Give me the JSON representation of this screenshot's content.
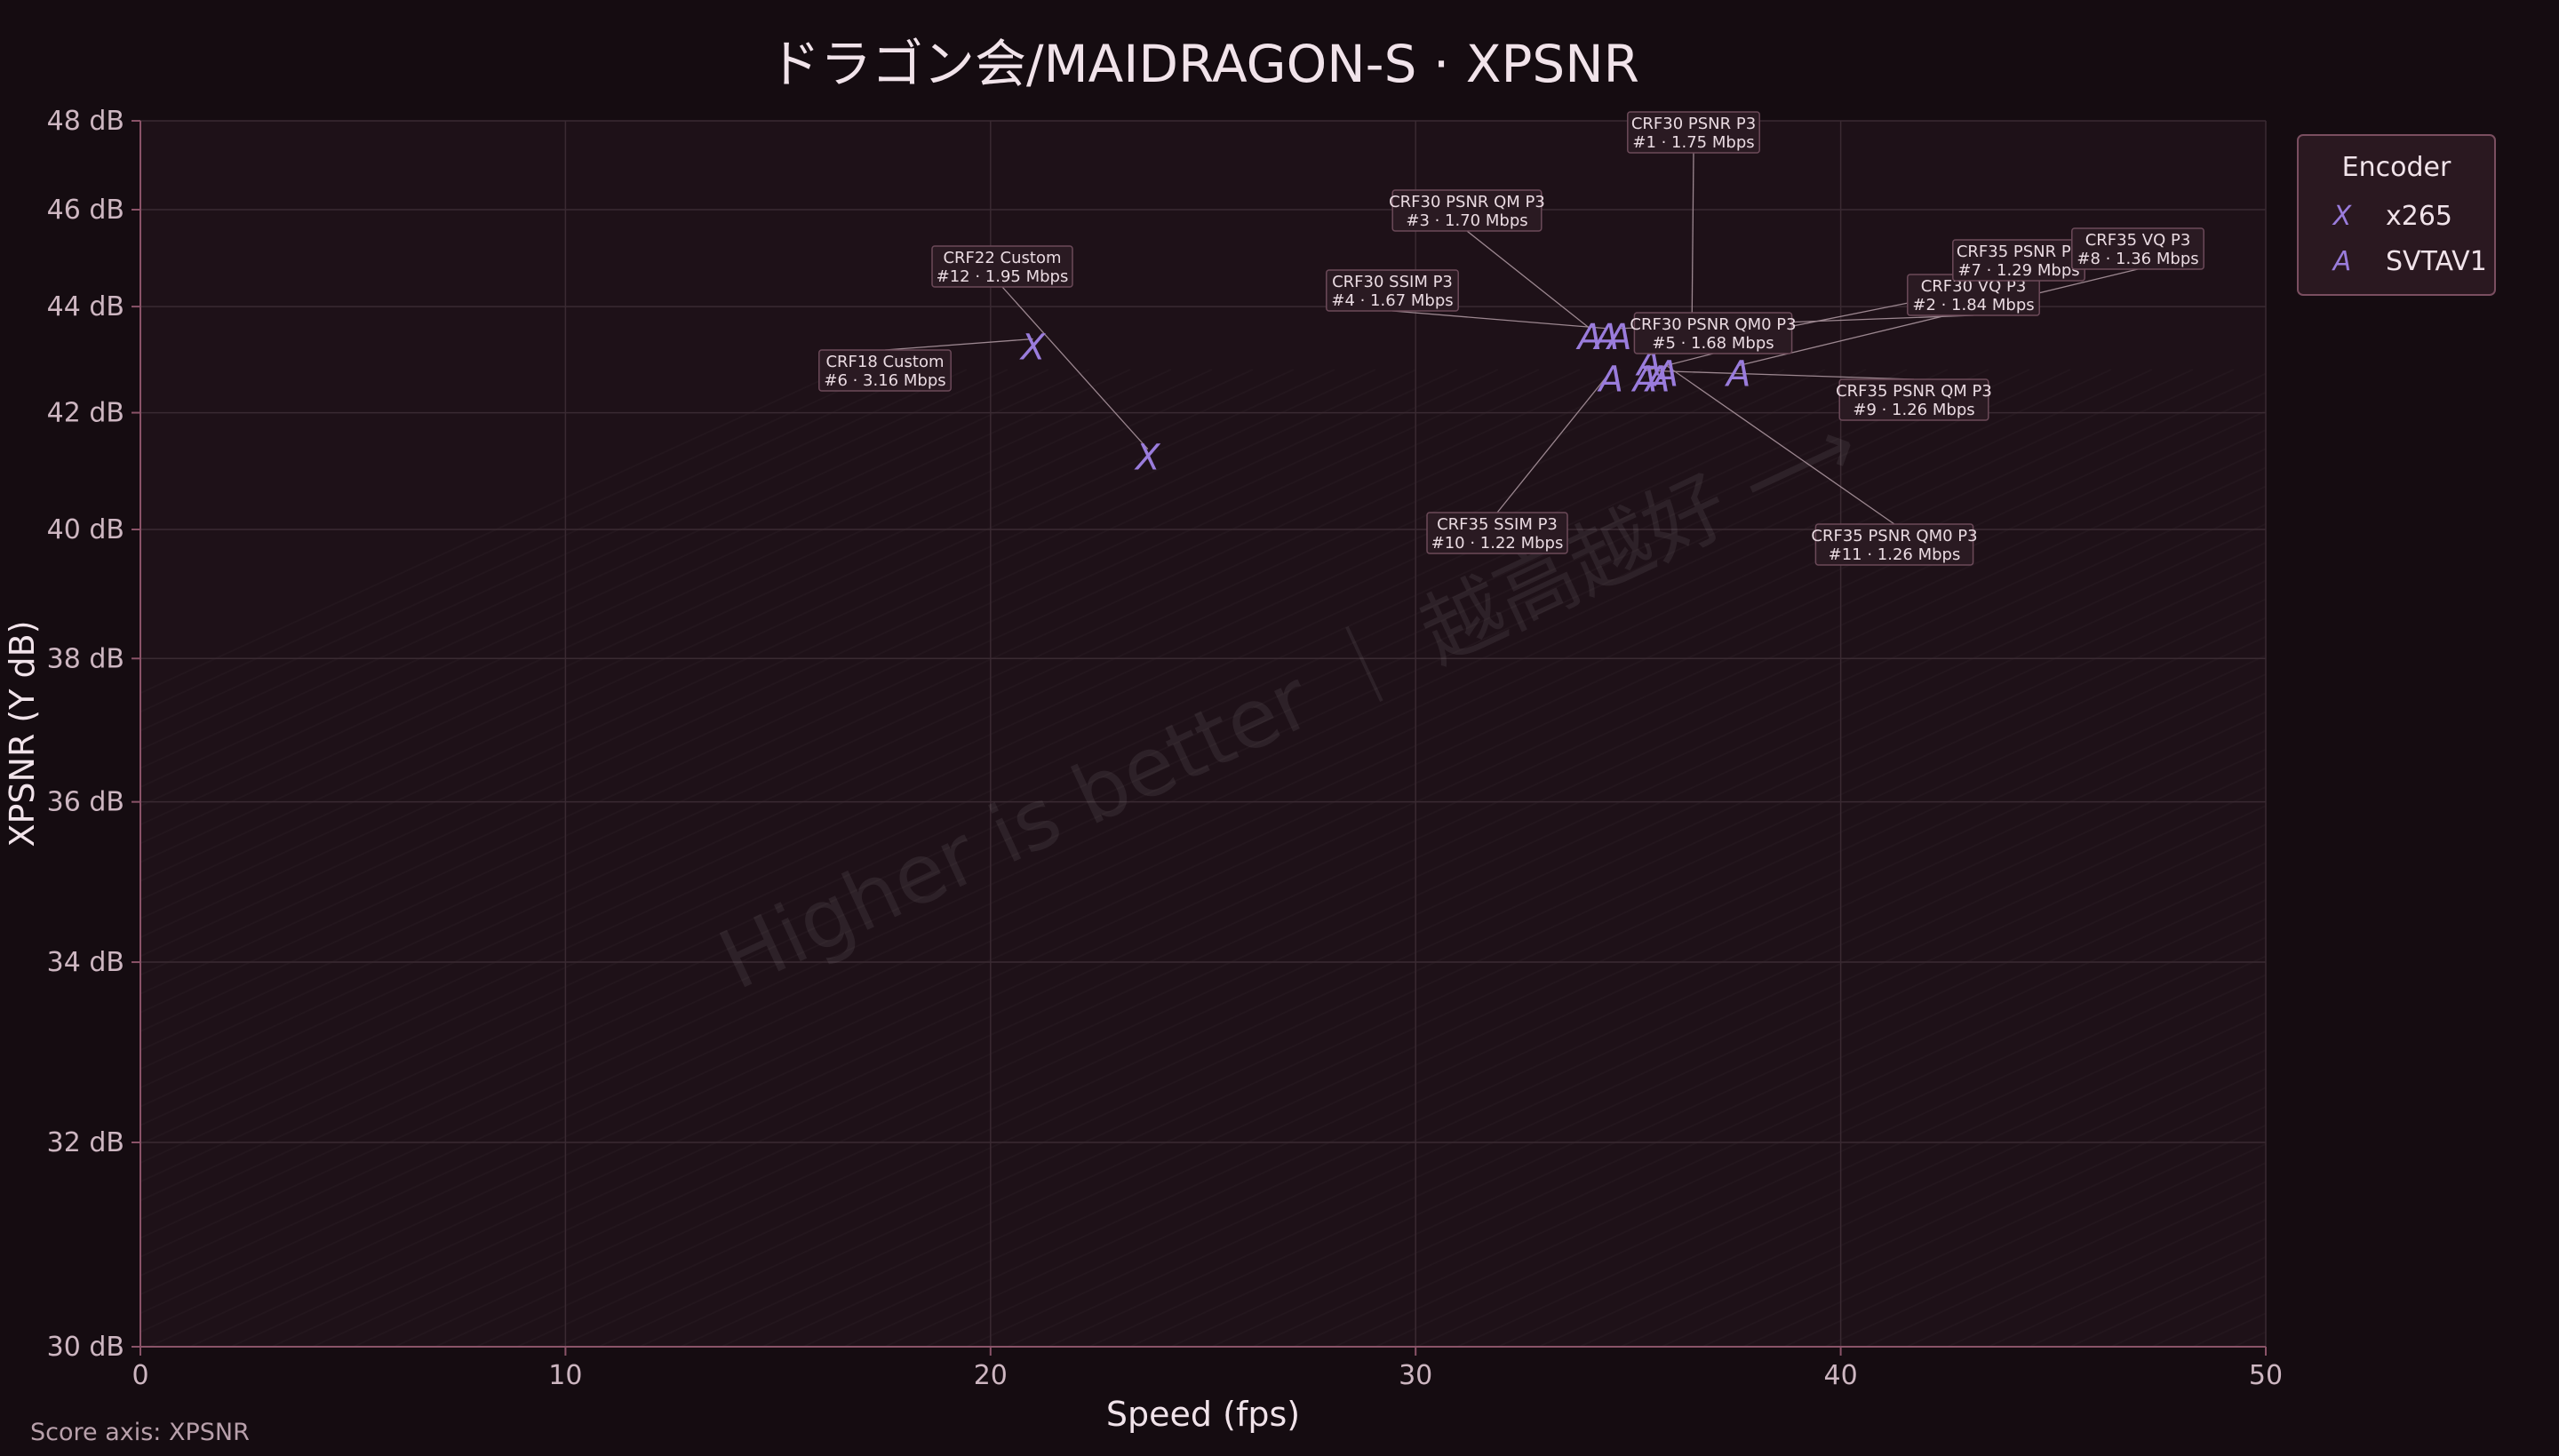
{
  "title": "ドラゴン会/MAIDRAGON-S · XPSNR",
  "footer": "Score axis: XPSNR",
  "watermark": "Higher is better ｜ 越高越好 ⟶",
  "colors": {
    "accent": "#9a7cdc",
    "background": "#150c11",
    "plot_background": "#1e1118"
  },
  "chart_data": {
    "type": "scatter",
    "title": "ドラゴン会/MAIDRAGON-S · XPSNR",
    "xlabel": "Speed (fps)",
    "ylabel": "XPSNR (Y dB)",
    "xlim": [
      0,
      50
    ],
    "ylim": [
      30,
      48
    ],
    "y_scale": "reciprocal",
    "x_ticks": [
      0,
      10,
      20,
      30,
      40,
      50
    ],
    "y_ticks": [
      30,
      32,
      34,
      36,
      38,
      40,
      42,
      44,
      46,
      48
    ],
    "y_tick_labels": [
      "30 dB",
      "32 dB",
      "34 dB",
      "36 dB",
      "38 dB",
      "40 dB",
      "42 dB",
      "44 dB",
      "46 dB",
      "48 dB"
    ],
    "grid": true,
    "legend": {
      "title": "Encoder",
      "position": "outside-top-right"
    },
    "series": [
      {
        "name": "x265",
        "marker": "X",
        "points": [
          {
            "x": 21.0,
            "y": 43.2,
            "line1": "CRF18 Custom",
            "line2": "#6 · 3.16 Mbps"
          },
          {
            "x": 23.7,
            "y": 41.2,
            "line1": "CRF22 Custom",
            "line2": "#12 · 1.95 Mbps"
          }
        ]
      },
      {
        "name": "SVTAV1",
        "marker": "A",
        "points": [
          {
            "x": 36.5,
            "y": 43.5,
            "line1": "CRF30 PSNR P3",
            "line2": "#1 · 1.75 Mbps"
          },
          {
            "x": 34.1,
            "y": 43.4,
            "line1": "CRF30 PSNR QM P3",
            "line2": "#3 · 1.70 Mbps"
          },
          {
            "x": 34.5,
            "y": 43.4,
            "line1": "CRF30 SSIM P3",
            "line2": "#4 · 1.67 Mbps"
          },
          {
            "x": 34.8,
            "y": 43.4,
            "line1": "CRF30 VQ P3",
            "line2": "#2 · 1.84 Mbps"
          },
          {
            "x": 34.6,
            "y": 42.6,
            "line1": "CRF35 SSIM P3",
            "line2": "#10 · 1.22 Mbps"
          },
          {
            "x": 35.4,
            "y": 42.6,
            "line1": "CRF30 PSNR QM0 P3",
            "line2": "#5 · 1.68 Mbps"
          },
          {
            "x": 35.7,
            "y": 42.6,
            "line1": "CRF35 PSNR QM P3",
            "line2": "#9 · 1.26 Mbps"
          },
          {
            "x": 35.9,
            "y": 42.7,
            "line1": "CRF35 PSNR QM0 P3",
            "line2": "#11 · 1.26 Mbps"
          },
          {
            "x": 35.5,
            "y": 42.9,
            "line1": "CRF35 PSNR P3",
            "line2": "#7 · 1.29 Mbps"
          },
          {
            "x": 37.6,
            "y": 42.7,
            "line1": "CRF35 VQ P3",
            "line2": "#8 · 1.36 Mbps"
          }
        ]
      }
    ]
  }
}
